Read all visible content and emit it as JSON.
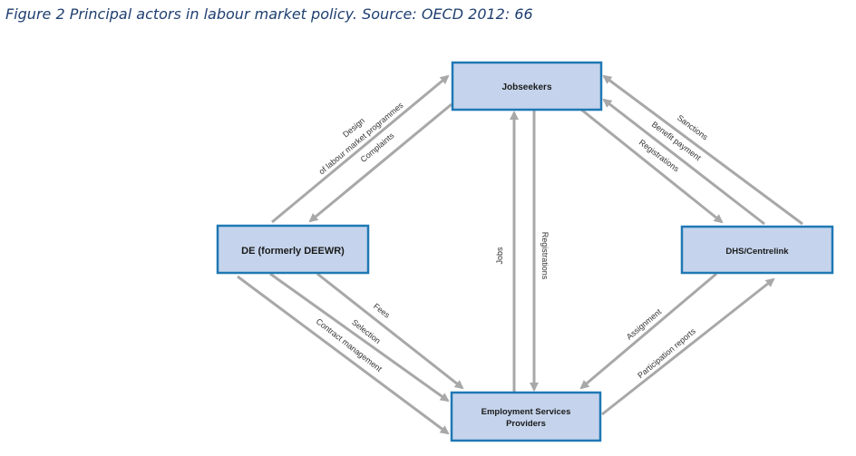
{
  "caption": "Figure 2 Principal actors in labour market policy. Source: OECD 2012: 66",
  "nodes": {
    "jobseekers": "Jobseekers",
    "de": "DE (formerly DEEWR)",
    "dhs": "DHS/Centrelink",
    "esp_line1": "Employment Services",
    "esp_line2": "Providers"
  },
  "edges": {
    "design_line1": "Design",
    "design_line2": "of labour market programmes",
    "complaints": "Complaints",
    "sanctions": "Sanctions",
    "benefit_payment": "Benefit payment",
    "registrations_dhs": "Registrations",
    "jobs": "Jobs",
    "registrations_esp": "Registrations",
    "fees": "Fees",
    "selection": "Selection",
    "contract_management": "Contract management",
    "assignment": "Assignment",
    "participation_reports": "Participation reports"
  },
  "colors": {
    "box_fill": "#c5d4ec",
    "box_stroke": "#1f78b4",
    "arrow": "#a8a8a8",
    "caption": "#1f3f70"
  }
}
